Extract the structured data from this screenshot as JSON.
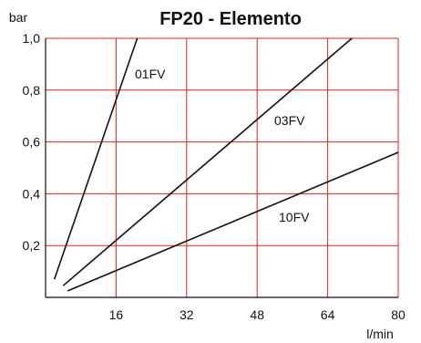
{
  "chart_data": {
    "type": "line",
    "title": "FP20 - Elemento",
    "xlabel": "l/min",
    "ylabel": "bar",
    "xlim": [
      0,
      80
    ],
    "ylim": [
      0,
      1.0
    ],
    "grid": true,
    "x_ticks": [
      16,
      32,
      48,
      64,
      80
    ],
    "x_tick_labels": [
      "16",
      "32",
      "48",
      "64",
      "80"
    ],
    "y_ticks": [
      0.2,
      0.4,
      0.6,
      0.8,
      1.0
    ],
    "y_tick_labels": [
      "0,2",
      "0,4",
      "0,6",
      "0,8",
      "1,0"
    ],
    "series": [
      {
        "name": "01FV",
        "x": [
          2,
          20.8
        ],
        "y": [
          0.07,
          1.0
        ]
      },
      {
        "name": "03FV",
        "x": [
          4,
          69.5
        ],
        "y": [
          0.045,
          1.0
        ]
      },
      {
        "name": "10FV",
        "x": [
          5,
          80
        ],
        "y": [
          0.025,
          0.56
        ]
      }
    ],
    "colors": {
      "grid": "#e2231a",
      "lines": "#111111",
      "background": "#ffffff"
    }
  }
}
